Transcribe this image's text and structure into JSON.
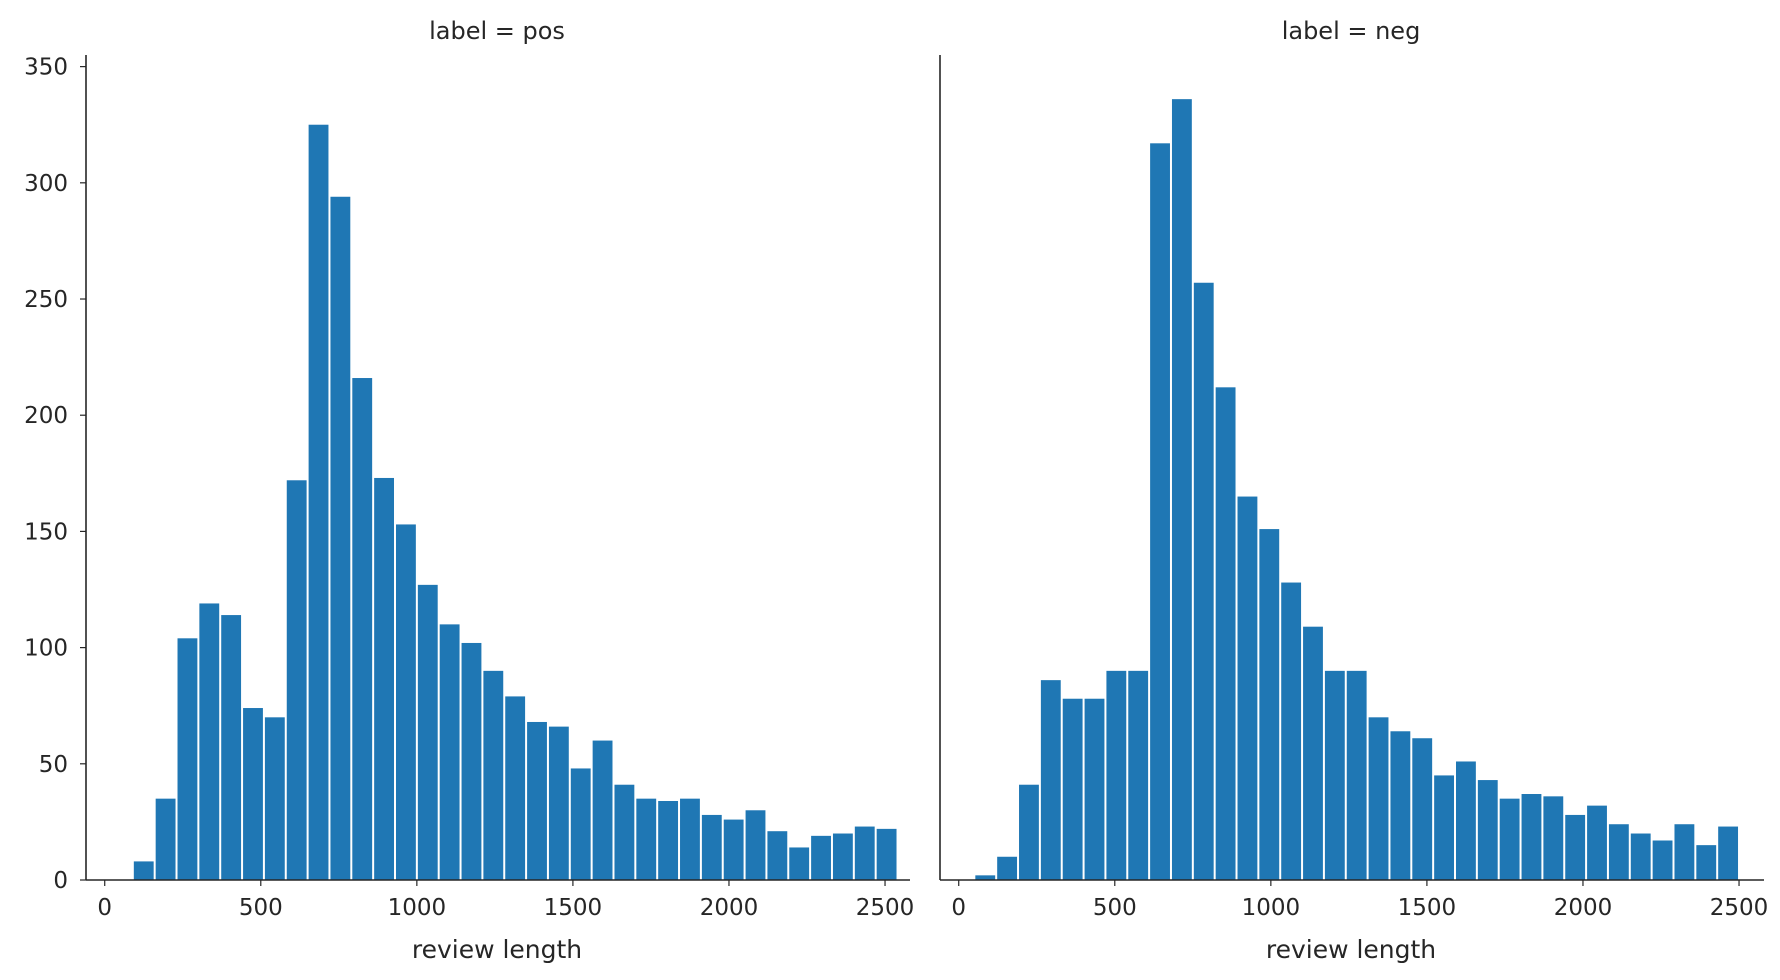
{
  "chart_data": [
    {
      "type": "bar",
      "title": "label = pos",
      "xlabel": "review length",
      "ylabel": "",
      "xlim": [
        -60,
        2580
      ],
      "ylim": [
        0,
        355
      ],
      "xticks": [
        0,
        500,
        1000,
        1500,
        2000,
        2500
      ],
      "yticks": [
        0,
        50,
        100,
        150,
        200,
        250,
        300,
        350
      ],
      "grid": false,
      "color": "#1f77b4",
      "bin_width": 70,
      "bins": [
        {
          "x0": 90,
          "x1": 160,
          "count": 8
        },
        {
          "x0": 160,
          "x1": 230,
          "count": 35
        },
        {
          "x0": 230,
          "x1": 300,
          "count": 104
        },
        {
          "x0": 300,
          "x1": 370,
          "count": 119
        },
        {
          "x0": 370,
          "x1": 440,
          "count": 114
        },
        {
          "x0": 440,
          "x1": 510,
          "count": 74
        },
        {
          "x0": 510,
          "x1": 580,
          "count": 70
        },
        {
          "x0": 580,
          "x1": 650,
          "count": 172
        },
        {
          "x0": 650,
          "x1": 720,
          "count": 325
        },
        {
          "x0": 720,
          "x1": 790,
          "count": 294
        },
        {
          "x0": 790,
          "x1": 860,
          "count": 216
        },
        {
          "x0": 860,
          "x1": 930,
          "count": 173
        },
        {
          "x0": 930,
          "x1": 1000,
          "count": 153
        },
        {
          "x0": 1000,
          "x1": 1070,
          "count": 127
        },
        {
          "x0": 1070,
          "x1": 1140,
          "count": 110
        },
        {
          "x0": 1140,
          "x1": 1210,
          "count": 102
        },
        {
          "x0": 1210,
          "x1": 1280,
          "count": 90
        },
        {
          "x0": 1280,
          "x1": 1350,
          "count": 79
        },
        {
          "x0": 1350,
          "x1": 1420,
          "count": 68
        },
        {
          "x0": 1420,
          "x1": 1490,
          "count": 66
        },
        {
          "x0": 1490,
          "x1": 1560,
          "count": 48
        },
        {
          "x0": 1560,
          "x1": 1630,
          "count": 60
        },
        {
          "x0": 1630,
          "x1": 1700,
          "count": 41
        },
        {
          "x0": 1700,
          "x1": 1770,
          "count": 35
        },
        {
          "x0": 1770,
          "x1": 1840,
          "count": 34
        },
        {
          "x0": 1840,
          "x1": 1910,
          "count": 35
        },
        {
          "x0": 1910,
          "x1": 1980,
          "count": 28
        },
        {
          "x0": 1980,
          "x1": 2050,
          "count": 26
        },
        {
          "x0": 2050,
          "x1": 2120,
          "count": 30
        },
        {
          "x0": 2120,
          "x1": 2190,
          "count": 21
        },
        {
          "x0": 2190,
          "x1": 2260,
          "count": 14
        },
        {
          "x0": 2260,
          "x1": 2330,
          "count": 19
        },
        {
          "x0": 2330,
          "x1": 2400,
          "count": 20
        },
        {
          "x0": 2400,
          "x1": 2470,
          "count": 23
        },
        {
          "x0": 2470,
          "x1": 2540,
          "count": 22
        }
      ]
    },
    {
      "type": "bar",
      "title": "label = neg",
      "xlabel": "review length",
      "ylabel": "",
      "xlim": [
        -60,
        2580
      ],
      "ylim": [
        0,
        355
      ],
      "xticks": [
        0,
        500,
        1000,
        1500,
        2000,
        2500
      ],
      "yticks": [
        0,
        50,
        100,
        150,
        200,
        250,
        300,
        350
      ],
      "grid": false,
      "color": "#1f77b4",
      "bin_width": 70,
      "bins": [
        {
          "x0": 50,
          "x1": 120,
          "count": 2
        },
        {
          "x0": 120,
          "x1": 190,
          "count": 10
        },
        {
          "x0": 190,
          "x1": 260,
          "count": 41
        },
        {
          "x0": 260,
          "x1": 330,
          "count": 86
        },
        {
          "x0": 330,
          "x1": 400,
          "count": 78
        },
        {
          "x0": 400,
          "x1": 470,
          "count": 78
        },
        {
          "x0": 470,
          "x1": 540,
          "count": 90
        },
        {
          "x0": 540,
          "x1": 610,
          "count": 90
        },
        {
          "x0": 610,
          "x1": 680,
          "count": 317
        },
        {
          "x0": 680,
          "x1": 750,
          "count": 336
        },
        {
          "x0": 750,
          "x1": 820,
          "count": 257
        },
        {
          "x0": 820,
          "x1": 890,
          "count": 212
        },
        {
          "x0": 890,
          "x1": 960,
          "count": 165
        },
        {
          "x0": 960,
          "x1": 1030,
          "count": 151
        },
        {
          "x0": 1030,
          "x1": 1100,
          "count": 128
        },
        {
          "x0": 1100,
          "x1": 1170,
          "count": 109
        },
        {
          "x0": 1170,
          "x1": 1240,
          "count": 90
        },
        {
          "x0": 1240,
          "x1": 1310,
          "count": 90
        },
        {
          "x0": 1310,
          "x1": 1380,
          "count": 70
        },
        {
          "x0": 1380,
          "x1": 1450,
          "count": 64
        },
        {
          "x0": 1450,
          "x1": 1520,
          "count": 61
        },
        {
          "x0": 1520,
          "x1": 1590,
          "count": 45
        },
        {
          "x0": 1590,
          "x1": 1660,
          "count": 51
        },
        {
          "x0": 1660,
          "x1": 1730,
          "count": 43
        },
        {
          "x0": 1730,
          "x1": 1800,
          "count": 35
        },
        {
          "x0": 1800,
          "x1": 1870,
          "count": 37
        },
        {
          "x0": 1870,
          "x1": 1940,
          "count": 36
        },
        {
          "x0": 1940,
          "x1": 2010,
          "count": 28
        },
        {
          "x0": 2010,
          "x1": 2080,
          "count": 32
        },
        {
          "x0": 2080,
          "x1": 2150,
          "count": 24
        },
        {
          "x0": 2150,
          "x1": 2220,
          "count": 20
        },
        {
          "x0": 2220,
          "x1": 2290,
          "count": 17
        },
        {
          "x0": 2290,
          "x1": 2360,
          "count": 24
        },
        {
          "x0": 2360,
          "x1": 2430,
          "count": 15
        },
        {
          "x0": 2430,
          "x1": 2500,
          "count": 23
        }
      ]
    }
  ]
}
